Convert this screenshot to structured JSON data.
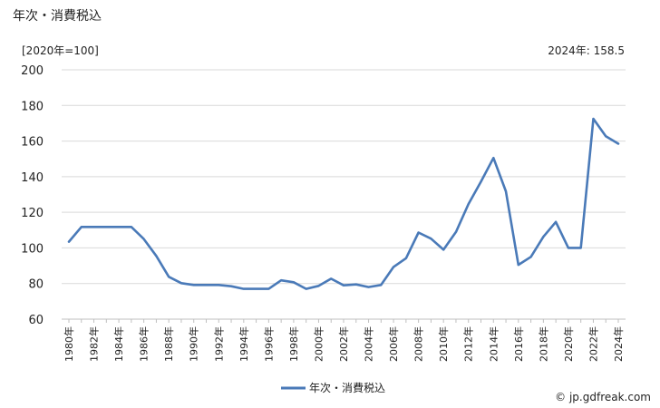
{
  "chart_data": {
    "type": "line",
    "title": "年次・消費税込",
    "unit_label": "[2020年=100]",
    "latest_label": "2024年: 158.5",
    "ylim": [
      60,
      200
    ],
    "y_ticks": [
      60,
      80,
      100,
      120,
      140,
      160,
      180,
      200
    ],
    "grid": true,
    "legend_position": "bottom",
    "x_tick_labels": [
      "1980年",
      "1982年",
      "1984年",
      "1986年",
      "1988年",
      "1990年",
      "1992年",
      "1994年",
      "1996年",
      "1998年",
      "2000年",
      "2002年",
      "2004年",
      "2006年",
      "2008年",
      "2010年",
      "2012年",
      "2014年",
      "2016年",
      "2018年",
      "2020年",
      "2022年",
      "2024年"
    ],
    "x": [
      1980,
      1981,
      1982,
      1983,
      1984,
      1985,
      1986,
      1987,
      1988,
      1989,
      1990,
      1991,
      1992,
      1993,
      1994,
      1995,
      1996,
      1997,
      1998,
      1999,
      2000,
      2001,
      2002,
      2003,
      2004,
      2005,
      2006,
      2007,
      2008,
      2009,
      2010,
      2011,
      2012,
      2013,
      2014,
      2015,
      2016,
      2017,
      2018,
      2019,
      2020,
      2021,
      2022,
      2023,
      2024
    ],
    "series": [
      {
        "name": "年次・消費税込",
        "color": "#4a7ab8",
        "values": [
          103.5,
          111.8,
          111.8,
          111.8,
          111.8,
          111.8,
          105.0,
          95.5,
          83.8,
          80.2,
          79.2,
          79.2,
          79.2,
          78.5,
          77.0,
          77.0,
          77.0,
          81.8,
          80.7,
          77.0,
          78.7,
          82.7,
          79.0,
          79.5,
          78.0,
          79.2,
          89.3,
          94.2,
          108.6,
          105.2,
          99.0,
          109.0,
          124.6,
          137.2,
          150.5,
          131.8,
          90.5,
          95.0,
          106.3,
          114.6,
          100.0,
          100.0,
          172.5,
          162.7,
          158.5
        ]
      }
    ],
    "copyright": "© jp.gdfreak.com"
  }
}
